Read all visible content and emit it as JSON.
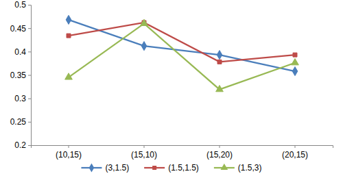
{
  "chart_data": {
    "type": "line",
    "categories": [
      "(10,15)",
      "(15,10)",
      "(15,20)",
      "(20,15)"
    ],
    "series": [
      {
        "name": "(3,1.5)",
        "color": "#4a7ebb",
        "marker": "diamond",
        "values": [
          0.468,
          0.412,
          0.393,
          0.358
        ]
      },
      {
        "name": "(1.5,1.5)",
        "color": "#be4b48",
        "marker": "square",
        "values": [
          0.434,
          0.462,
          0.378,
          0.393
        ]
      },
      {
        "name": "(1.5,3)",
        "color": "#98b954",
        "marker": "triangle",
        "values": [
          0.345,
          0.46,
          0.319,
          0.376
        ]
      }
    ],
    "ylim": [
      0.2,
      0.5
    ],
    "yticks": [
      0.2,
      0.25,
      0.3,
      0.35,
      0.4,
      0.45,
      0.5
    ],
    "grid": false,
    "legend": "bottom"
  }
}
